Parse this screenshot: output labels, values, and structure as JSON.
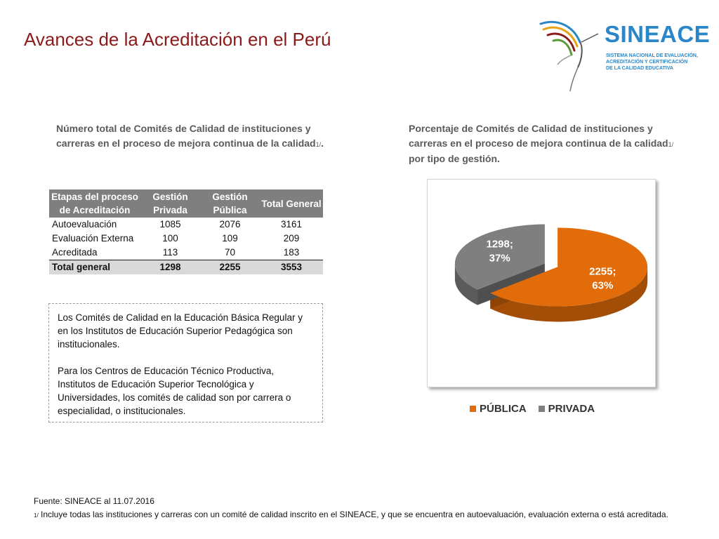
{
  "page": {
    "title": "Avances de la Acreditación en el Perú"
  },
  "logo": {
    "name": "SINEACE",
    "subtitle_lines": [
      "SISTEMA NACIONAL DE EVALUACIÓN,",
      "ACREDITACIÓN Y CERTIFICACIÓN",
      "DE LA CALIDAD EDUCATIVA"
    ]
  },
  "left_panel": {
    "heading_main": "Número total de Comités de Calidad de instituciones y carreras  en el proceso de mejora continua de la calidad",
    "heading_sup": "1/",
    "heading_end": "."
  },
  "right_panel": {
    "heading_main": "Porcentaje de Comités de Calidad de instituciones y carreras  en el proceso de mejora continua de la calidad",
    "heading_sup": "1/",
    "heading_end": " por tipo de gestión."
  },
  "table": {
    "headers": [
      "Etapas del proceso de Acreditación",
      "Gestión Privada",
      "Gestión Pública",
      "Total General"
    ],
    "rows": [
      [
        "Autoevaluación",
        "1085",
        "2076",
        "3161"
      ],
      [
        "Evaluación Externa",
        "100",
        "109",
        "209"
      ],
      [
        "Acreditada",
        "113",
        "70",
        "183"
      ]
    ],
    "total": [
      "Total general",
      "1298",
      "2255",
      "3553"
    ]
  },
  "note": {
    "paragraph1": "Los Comités de Calidad en la Educación Básica Regular y en los Institutos de Educación Superior Pedagógica son institucionales.",
    "paragraph2": "Para los Centros de Educación Técnico Productiva, Institutos de Educación Superior Tecnológica y Universidades, los comités de calidad son por carrera o especialidad, o institucionales."
  },
  "chart_data": {
    "type": "pie",
    "title": "",
    "series": [
      {
        "name": "PÚBLICA",
        "value": 2255,
        "percent": 63,
        "label": "2255; 63%",
        "color": "#e36c0a"
      },
      {
        "name": "PRIVADA",
        "value": 1298,
        "percent": 37,
        "label": "1298; 37%",
        "color": "#7f7f7f"
      }
    ],
    "legend": [
      "PÚBLICA",
      "PRIVADA"
    ],
    "legend_position": "bottom",
    "style": "3d-exploded"
  },
  "footer": {
    "source": "Fuente: SINEACE al  11.07.2016",
    "note_marker": "1/",
    "note_text": " Incluye todas las instituciones y carreras  con un comité de calidad inscrito en el SINEACE, y que se encuentra en autoevaluación, evaluación externa o está acreditada."
  },
  "colors": {
    "title": "#8b1a1a",
    "brand": "#2a86c8",
    "publica": "#e36c0a",
    "privada": "#7f7f7f"
  }
}
